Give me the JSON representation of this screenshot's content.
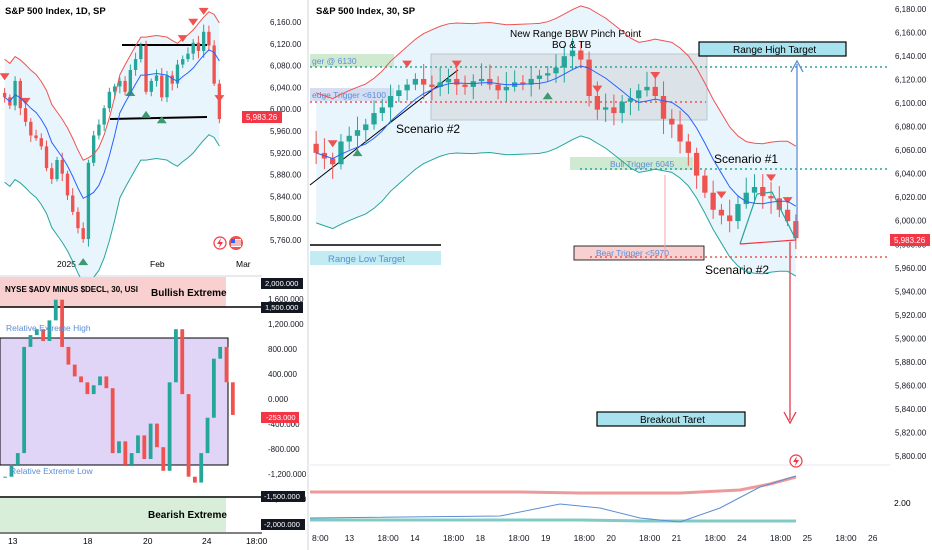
{
  "colors": {
    "up": "#26a69a",
    "down": "#ef5350",
    "bb_upper": "#ef5350",
    "bb_lower": "#26a69a",
    "basis": "#2962ff",
    "band_fill": "#e3f2fd",
    "range_box": "#cfd8dc",
    "green_box": "#c8e6c9",
    "red_box": "#f8d0d0",
    "violet_box": "#e1d5f7",
    "cyan_box": "#a8e2ee",
    "price_tag": "#f23645",
    "axis_text": "#131722"
  },
  "panel_daily": {
    "title": "S&P 500 Index, 1D, SP",
    "price_tag": "5,983.26",
    "y_ticks": [
      "6,160.00",
      "6,120.00",
      "6,080.00",
      "6,040.00",
      "6,000.00",
      "5,960.00",
      "5,920.00",
      "5,880.00",
      "5,840.00",
      "5,800.00",
      "5,760.00"
    ],
    "x_ticks": [
      "2025",
      "Feb",
      "Mar"
    ],
    "icons": [
      "flash-icon",
      "flag-icon"
    ]
  },
  "panel_adv": {
    "title": "NYSE $ADV MINUS $DECL, 30, USI",
    "y_ticks": [
      "1,600.000",
      "1,200.000",
      "800.000",
      "400.000",
      "0.000",
      "-400.000",
      "-800.000",
      "-1,200.000",
      "-1,600.000"
    ],
    "level_tags": [
      "2,000.000",
      "1,500.000",
      "-253.000",
      "-1,500.000",
      "-2,000.000"
    ],
    "x_ticks": [
      "13",
      "18",
      "20",
      "24",
      "18:00"
    ],
    "labels": {
      "bullish": "Bullish Extreme",
      "bearish": "Bearish Extreme",
      "rel_high": "Relative Extreme High",
      "rel_low": "Relative Extreme Low"
    }
  },
  "panel_30m": {
    "title": "S&P 500 Index, 30, SP",
    "price_tag": "5,983.26",
    "y_ticks": [
      "6,180.00",
      "6,160.00",
      "6,140.00",
      "6,120.00",
      "6,100.00",
      "6,080.00",
      "6,060.00",
      "6,040.00",
      "6,020.00",
      "6,000.00",
      "5,980.00",
      "5,960.00",
      "5,940.00",
      "5,920.00",
      "5,900.00",
      "5,880.00",
      "5,860.00",
      "5,840.00",
      "5,820.00",
      "5,800.00"
    ],
    "x_ticks": [
      "8:00",
      "13",
      "18:00",
      "14",
      "18:00",
      "18",
      "18:00",
      "19",
      "18:00",
      "20",
      "18:00",
      "21",
      "18:00",
      "24",
      "18:00",
      "25",
      "18:00",
      "26"
    ],
    "osc_tick": "2.00",
    "annotations": {
      "pinch": "New Range BBW Pinch Point",
      "bo": "BO & TB",
      "range_high": "Range High Target",
      "range_low": "Range Low Target",
      "trigger_6130": "ger @ 6130",
      "trigger_6100": "edge Trigger <6100",
      "bull_trigger": "Bull Trigger 6045",
      "bear_trigger": "Bear Trigger <5970",
      "scenario1": "Scenario #1",
      "scenario2a": "Scenario #2",
      "scenario2b": "Scenario #2",
      "breakout": "Breakout Taret"
    }
  },
  "chart_data": [
    {
      "type": "candlestick",
      "title": "S&P 500 Index, 1D, SP",
      "x_labels": [
        "2025",
        "Feb",
        "Mar"
      ],
      "ylim": [
        5740,
        6180
      ],
      "last_price": 5983.26,
      "closes": [
        6020,
        6005,
        6050,
        6000,
        5975,
        5950,
        5945,
        5930,
        5890,
        5870,
        5905,
        5880,
        5840,
        5810,
        5780,
        5760,
        5900,
        5950,
        5970,
        6000,
        6030,
        6040,
        6050,
        6030,
        6070,
        6090,
        6115,
        6030,
        6050,
        6060,
        6020,
        6060,
        6045,
        6080,
        6090,
        6100,
        6120,
        6105,
        6140,
        6115,
        6045,
        5980
      ],
      "levels": {
        "range_top": 6125,
        "range_bottom": 5992
      }
    },
    {
      "type": "line",
      "title": "NYSE $ADV MINUS $DECL, 30, USI",
      "x_labels": [
        "13",
        "18",
        "20",
        "24",
        "18:00"
      ],
      "ylim": [
        -2000,
        2000
      ],
      "last_value": -253,
      "values": [
        -1300,
        -1100,
        -900,
        900,
        1100,
        1200,
        1000,
        1350,
        1700,
        900,
        600,
        400,
        300,
        100,
        250,
        400,
        200,
        -900,
        -700,
        -1100,
        -900,
        -600,
        -1000,
        -400,
        -800,
        -1200,
        300,
        1200,
        100,
        -1300,
        -1400,
        -900,
        -300,
        700,
        900,
        300,
        -253
      ],
      "levels": {
        "bullish_extreme": [
          1500,
          2000
        ],
        "bearish_extreme": [
          -2000,
          -1500
        ],
        "relative_high": 900,
        "relative_low": -1050
      }
    },
    {
      "type": "candlestick",
      "title": "S&P 500 Index, 30, SP",
      "x_labels": [
        "8:00",
        "13",
        "18:00",
        "14",
        "18:00",
        "18",
        "18:00",
        "19",
        "18:00",
        "20",
        "18:00",
        "21",
        "18:00",
        "24",
        "18:00",
        "25",
        "18:00",
        "26"
      ],
      "ylim": [
        5790,
        6190
      ],
      "last_price": 5983.26,
      "closes": [
        6060,
        6055,
        6050,
        6070,
        6075,
        6080,
        6085,
        6095,
        6100,
        6110,
        6115,
        6120,
        6125,
        6120,
        6118,
        6122,
        6125,
        6120,
        6118,
        6123,
        6125,
        6120,
        6115,
        6118,
        6122,
        6120,
        6125,
        6128,
        6130,
        6135,
        6145,
        6150,
        6142,
        6110,
        6098,
        6100,
        6095,
        6105,
        6108,
        6115,
        6118,
        6110,
        6090,
        6085,
        6070,
        6060,
        6040,
        6025,
        6010,
        6005,
        6000,
        6015,
        6025,
        6030,
        6022,
        6020,
        6010,
        6000,
        5985
      ],
      "levels": {
        "range_high_target": 6140,
        "range_low_target": 5968,
        "trigger_6130": 6130,
        "trigger_6100": 6100,
        "bull_trigger": 6045,
        "bear_trigger": 5970,
        "breakout_target": 5830
      }
    }
  ]
}
